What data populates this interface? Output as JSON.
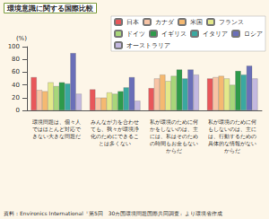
{
  "chart_data": {
    "type": "bar",
    "title": "環境意識に関する国際比較",
    "y_label": "(%)",
    "categories": [
      "環境問題は、個々人ではほとんど対応できない大きな問題だ",
      "みんなが力を合わせても、我々が環境浄化のためにできることは多くない",
      "私が環境のために何かをしないのは、主には、私はそのための時間もお金もないからだ",
      "私が環境のために何もしないのは、主には、行動するための具体的な情報がないからだ"
    ],
    "series": [
      {
        "name": "日本",
        "color": "#e8575a",
        "values": [
          52,
          33,
          35,
          50
        ]
      },
      {
        "name": "カナダ",
        "color": "#f7c4a6",
        "values": [
          32,
          20,
          50,
          52
        ]
      },
      {
        "name": "米国",
        "color": "#f5b971",
        "values": [
          30,
          20,
          56,
          54
        ]
      },
      {
        "name": "フランス",
        "color": "#e3e88a",
        "values": [
          44,
          28,
          46,
          50
        ]
      },
      {
        "name": "ドイツ",
        "color": "#a8d67a",
        "values": [
          38,
          26,
          54,
          40
        ]
      },
      {
        "name": "イギリス",
        "color": "#2e9a4a",
        "values": [
          44,
          30,
          64,
          62
        ]
      },
      {
        "name": "イタリア",
        "color": "#3aa8a0",
        "values": [
          42,
          36,
          50,
          56
        ]
      },
      {
        "name": "ロシア",
        "color": "#6a6fb8",
        "values": [
          90,
          52,
          64,
          70
        ]
      },
      {
        "name": "オーストラリア",
        "color": "#c3b8e0",
        "values": [
          26,
          15,
          56,
          50
        ]
      }
    ],
    "ylim": [
      0,
      100
    ],
    "yticks": [
      0,
      20,
      40,
      60,
      80,
      100
    ],
    "grid": false,
    "legend": "top-right",
    "annotations": [
      "資料：Environics International『第5回　30カ国環境問題国際共同調査』より環境省作成"
    ]
  }
}
